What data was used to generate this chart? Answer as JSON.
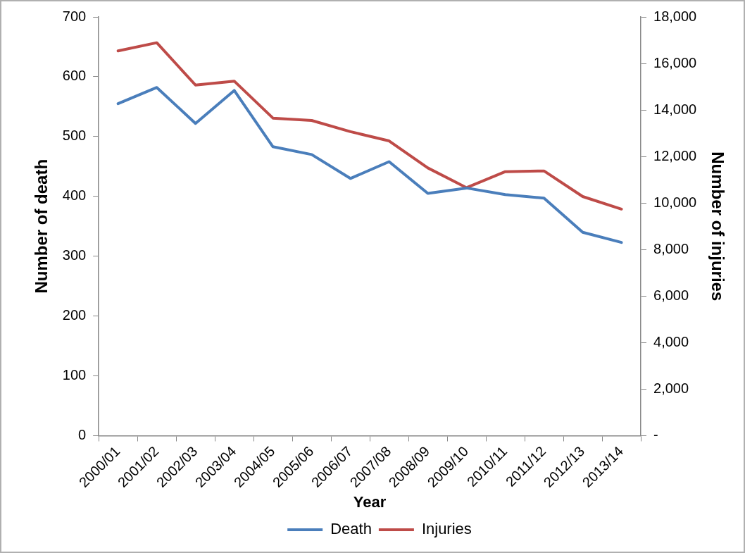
{
  "chart_data": {
    "type": "line",
    "xlabel": "Year",
    "ylabel": "Number of death",
    "y2label": "Number of injuries",
    "categories": [
      "2000/01",
      "2001/02",
      "2002/03",
      "2003/04",
      "2004/05",
      "2005/06",
      "2006/07",
      "2007/08",
      "2008/09",
      "2009/10",
      "2010/11",
      "2011/12",
      "2012/13",
      "2013/14"
    ],
    "series": [
      {
        "name": "Death",
        "color": "#4a7ebb",
        "values": [
          555,
          582,
          522,
          577,
          483,
          470,
          430,
          458,
          405,
          414,
          403,
          397,
          340,
          323
        ]
      },
      {
        "name": "Injuries",
        "color": "#be4b48",
        "axis": "y2",
        "values": [
          16540,
          16890,
          15070,
          15240,
          13650,
          13550,
          13070,
          12670,
          11510,
          10660,
          11350,
          11380,
          10280,
          9740
        ]
      }
    ],
    "ylim": [
      0,
      700
    ],
    "yticks": [
      0,
      100,
      200,
      300,
      400,
      500,
      600,
      700
    ],
    "y2lim": [
      0,
      18000
    ],
    "y2ticks": [
      {
        "value": 0,
        "label": "-"
      },
      {
        "value": 2000,
        "label": "2,000"
      },
      {
        "value": 4000,
        "label": "4,000"
      },
      {
        "value": 6000,
        "label": "6,000"
      },
      {
        "value": 8000,
        "label": "8,000"
      },
      {
        "value": 10000,
        "label": "10,000"
      },
      {
        "value": 12000,
        "label": "12,000"
      },
      {
        "value": 14000,
        "label": "14,000"
      },
      {
        "value": 16000,
        "label": "16,000"
      },
      {
        "value": 18000,
        "label": "18,000"
      }
    ],
    "grid": false,
    "legend": "bottom",
    "marker": "none",
    "line_style": "solid"
  }
}
